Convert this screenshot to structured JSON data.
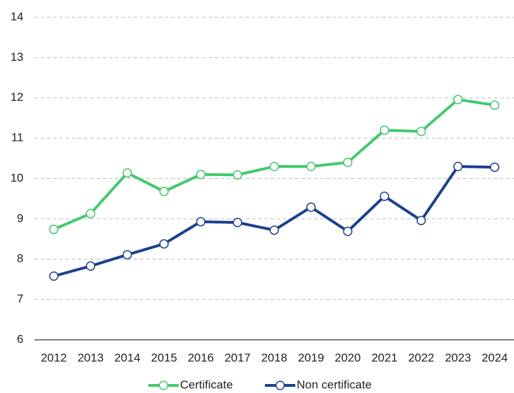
{
  "chart_data": {
    "type": "line",
    "categories": [
      "2012",
      "2013",
      "2014",
      "2015",
      "2016",
      "2017",
      "2018",
      "2019",
      "2020",
      "2021",
      "2022",
      "2023",
      "2024"
    ],
    "series": [
      {
        "name": "Certificate",
        "color": "#3fcb6c",
        "values": [
          8.74,
          9.13,
          10.14,
          9.68,
          10.1,
          10.09,
          10.3,
          10.3,
          10.4,
          11.2,
          11.17,
          11.96,
          11.82
        ]
      },
      {
        "name": "Non certificate",
        "color": "#1a3f91",
        "values": [
          7.58,
          7.83,
          8.11,
          8.38,
          8.93,
          8.91,
          8.72,
          9.29,
          8.69,
          9.56,
          8.96,
          10.3,
          10.28
        ]
      }
    ],
    "ylim": [
      6,
      14
    ],
    "yticks": [
      6,
      7,
      8,
      9,
      10,
      11,
      12,
      13,
      14
    ],
    "grid": true,
    "legend": "bottom"
  }
}
